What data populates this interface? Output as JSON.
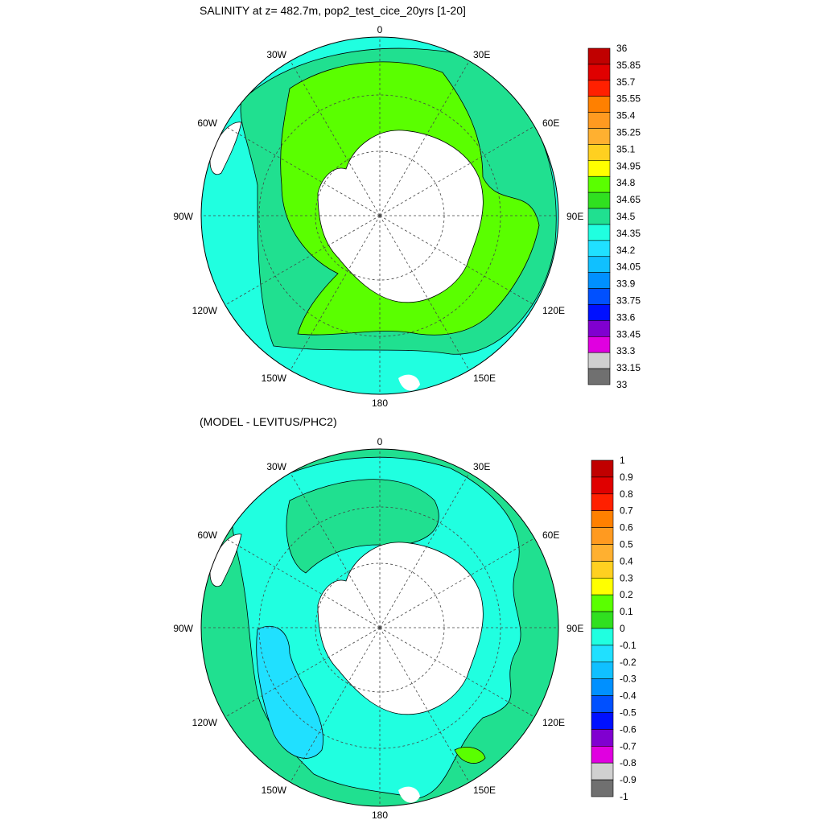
{
  "maps": [
    {
      "title": "SALINITY at z= 482.7m, pop2_test_cice_20yrs [1-20]",
      "lon_labels": {
        "n": "0",
        "e30": "30E",
        "e60": "60E",
        "e90": "90E",
        "e120": "120E",
        "e150": "150E",
        "s": "180",
        "w150": "150W",
        "w120": "120W",
        "w90": "90W",
        "w60": "60W",
        "w30": "30W"
      },
      "colorbar": {
        "labels": [
          "36",
          "35.85",
          "35.7",
          "35.55",
          "35.4",
          "35.25",
          "35.1",
          "34.95",
          "34.8",
          "34.65",
          "34.5",
          "34.35",
          "34.2",
          "34.05",
          "33.9",
          "33.75",
          "33.6",
          "33.45",
          "33.3",
          "33.15",
          "33"
        ],
        "colors": [
          "#c00000",
          "#e00000",
          "#ff2000",
          "#ff8000",
          "#ff9a20",
          "#ffb030",
          "#ffd020",
          "#ffff00",
          "#5aff00",
          "#30e020",
          "#20e090",
          "#20ffe0",
          "#20e0ff",
          "#10c0ff",
          "#0090ff",
          "#0050ff",
          "#0010ff",
          "#8000d0",
          "#e000e0",
          "#d0d0d0",
          "#707070"
        ]
      },
      "colors": {
        "outer": "#20ffe0",
        "mid": "#20e090",
        "inner": "#5aff00",
        "land": "#ffffff"
      }
    },
    {
      "title": "(MODEL - LEVITUS/PHC2)",
      "lon_labels": {
        "n": "0",
        "e30": "30E",
        "e60": "60E",
        "e90": "90E",
        "e120": "120E",
        "e150": "150E",
        "s": "180",
        "w150": "150W",
        "w120": "120W",
        "w90": "90W",
        "w60": "60W",
        "w30": "30W"
      },
      "colorbar": {
        "labels": [
          "1",
          "0.9",
          "0.8",
          "0.7",
          "0.6",
          "0.5",
          "0.4",
          "0.3",
          "0.2",
          "0.1",
          "0",
          "-0.1",
          "-0.2",
          "-0.3",
          "-0.4",
          "-0.5",
          "-0.6",
          "-0.7",
          "-0.8",
          "-0.9",
          "-1"
        ],
        "colors": [
          "#c00000",
          "#e00000",
          "#ff2000",
          "#ff8000",
          "#ff9a20",
          "#ffb030",
          "#ffd020",
          "#ffff00",
          "#5aff00",
          "#30e020",
          "#20ffe0",
          "#20e0ff",
          "#10c0ff",
          "#0090ff",
          "#0050ff",
          "#0010ff",
          "#8000d0",
          "#e000e0",
          "#d0d0d0",
          "#707070"
        ]
      },
      "colors": {
        "outer": "#20e090",
        "mid": "#20ffe0",
        "inner": "#20e0ff",
        "land": "#ffffff"
      }
    }
  ]
}
